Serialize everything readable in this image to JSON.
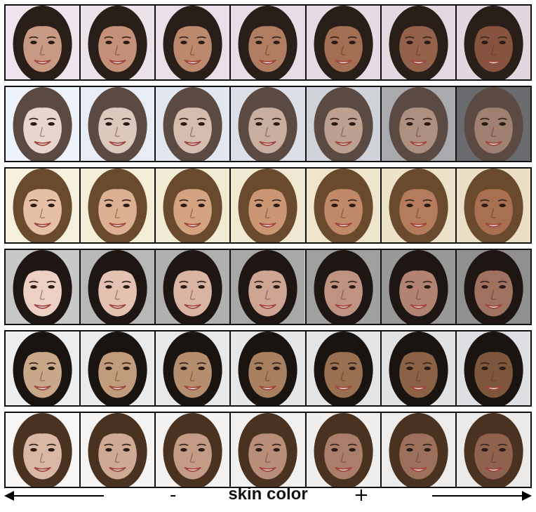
{
  "axis": {
    "label": "skin color",
    "minus": "-",
    "plus": "+"
  },
  "rows": [
    {
      "bg": [
        "#eee4ee",
        "#ece2ea",
        "#eadfe8",
        "#e8dde6",
        "#e6dbe4",
        "#e4d9e2",
        "#e2d7e0"
      ],
      "skin": [
        "#c89a84",
        "#c49078",
        "#bc886e",
        "#b07c62",
        "#a26e54",
        "#94624a",
        "#86543e"
      ],
      "hair": "#2a1e18"
    },
    {
      "bg": [
        "#eef2fa",
        "#e8ecf4",
        "#e2e6ee",
        "#dcdfe6",
        "#cfd2d8",
        "#a8aaae",
        "#6a6b6e"
      ],
      "skin": [
        "#e6d6cc",
        "#dcc8bc",
        "#d4bcae",
        "#c8ae9e",
        "#bea090",
        "#ae9080",
        "#a08070"
      ],
      "hair": "#5a4a42"
    },
    {
      "bg": [
        "#f6f0de",
        "#f4eed8",
        "#f2ebd4",
        "#f0e8d0",
        "#eee5cc",
        "#ece2c8",
        "#eadfc4"
      ],
      "skin": [
        "#e6c0a4",
        "#dcb090",
        "#d4a482",
        "#ca9674",
        "#c08a68",
        "#b47c5c",
        "#a87050"
      ],
      "hair": "#6a4a2c"
    },
    {
      "bg": [
        "#c8c8c8",
        "#b8b8b8",
        "#b0b0b0",
        "#a8a8a8",
        "#a0a0a0",
        "#989898",
        "#909090"
      ],
      "skin": [
        "#ecd0c4",
        "#e4c2b2",
        "#dab4a2",
        "#cea492",
        "#c09282",
        "#b28272",
        "#a07060"
      ],
      "hair": "#1e1612"
    },
    {
      "bg": [
        "#eceef0",
        "#e8eaec",
        "#e6e8ea",
        "#e4e6e8",
        "#e2e4e6",
        "#e0e2e4",
        "#dedfe2"
      ],
      "skin": [
        "#c8a888",
        "#c09c7c",
        "#b48e6e",
        "#a88060",
        "#9a7052",
        "#8c6246",
        "#7e563c"
      ],
      "hair": "#1a1410"
    },
    {
      "bg": [
        "#f8f6f4",
        "#f6f4f2",
        "#f4f2f0",
        "#f2f0ee",
        "#f0eeec",
        "#eeecea",
        "#eceae8"
      ],
      "skin": [
        "#d8b8a4",
        "#ceaa94",
        "#c49c86",
        "#b88e78",
        "#aa7e68",
        "#9c705a",
        "#8e624c"
      ],
      "hair": "#4a3220"
    }
  ]
}
